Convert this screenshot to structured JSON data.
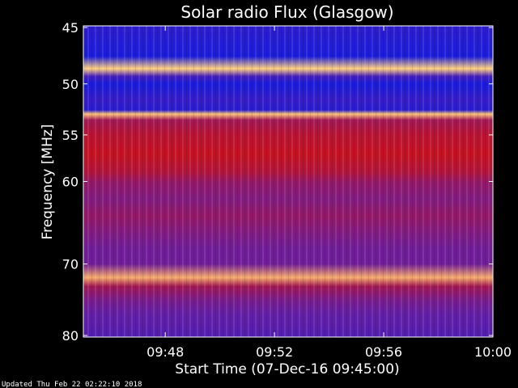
{
  "chart_data": {
    "type": "heatmap",
    "title": "Solar radio Flux (Glasgow)",
    "xlabel": "Start Time (07-Dec-16 09:45:00)",
    "ylabel": "Frequency [MHz]",
    "x_range": [
      "09:45",
      "10:00"
    ],
    "x_ticks": [
      "09:48",
      "09:52",
      "09:56",
      "10:00"
    ],
    "y_range": [
      45,
      80
    ],
    "y_ticks": [
      45,
      50,
      55,
      60,
      70,
      80
    ],
    "y_orientation": "inverted",
    "y_spacing": "non-uniform",
    "colormap": "blue-to-red",
    "colors": {
      "background": "#000000",
      "low": "#0a1be6",
      "mid": "#6a1e9e",
      "high": "#d01010",
      "peak": "#ffd080"
    },
    "intensity_profile": [
      {
        "frequency": 45.0,
        "level": 0.12
      },
      {
        "frequency": 46.5,
        "level": 0.08
      },
      {
        "frequency": 47.5,
        "level": 0.06
      },
      {
        "frequency": 48.6,
        "level": 1.0
      },
      {
        "frequency": 49.3,
        "level": 0.2
      },
      {
        "frequency": 50.0,
        "level": 0.05
      },
      {
        "frequency": 51.5,
        "level": 0.15
      },
      {
        "frequency": 52.5,
        "level": 0.1
      },
      {
        "frequency": 52.9,
        "level": 0.98
      },
      {
        "frequency": 53.5,
        "level": 0.55
      },
      {
        "frequency": 55.0,
        "level": 0.65
      },
      {
        "frequency": 57.0,
        "level": 0.7
      },
      {
        "frequency": 59.0,
        "level": 0.62
      },
      {
        "frequency": 60.0,
        "level": 0.5
      },
      {
        "frequency": 62.0,
        "level": 0.42
      },
      {
        "frequency": 64.0,
        "level": 0.5
      },
      {
        "frequency": 66.0,
        "level": 0.42
      },
      {
        "frequency": 68.0,
        "level": 0.35
      },
      {
        "frequency": 70.0,
        "level": 0.35
      },
      {
        "frequency": 71.8,
        "level": 0.95
      },
      {
        "frequency": 73.0,
        "level": 0.55
      },
      {
        "frequency": 75.0,
        "level": 0.38
      },
      {
        "frequency": 77.0,
        "level": 0.3
      },
      {
        "frequency": 80.0,
        "level": 0.25
      }
    ],
    "grid": false,
    "legend": "none"
  },
  "footer": {
    "updated": "Updated Thu Feb 22 02:22:10 2018"
  }
}
